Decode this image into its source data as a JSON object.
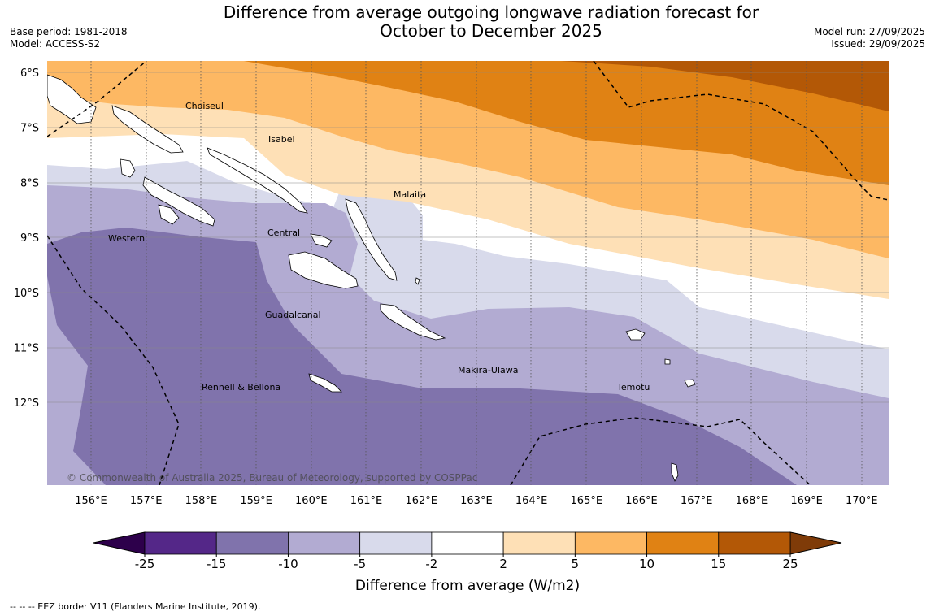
{
  "title_line1": "Difference from average outgoing longwave radiation forecast for",
  "title_line2": "October to December 2025",
  "meta": {
    "base_period": "Base period: 1981-2018",
    "model": "Model: ACCESS-S2",
    "model_run": "Model run: 27/09/2025",
    "issued": "Issued: 29/09/2025"
  },
  "map": {
    "lat_labels": [
      "6°S",
      "7°S",
      "8°S",
      "9°S",
      "10°S",
      "11°S",
      "12°S"
    ],
    "lon_labels": [
      "156°E",
      "157°E",
      "158°E",
      "159°E",
      "160°E",
      "161°E",
      "162°E",
      "163°E",
      "164°E",
      "165°E",
      "166°E",
      "167°E",
      "168°E",
      "169°E",
      "170°E"
    ],
    "provinces": {
      "choiseul": "Choiseul",
      "isabel": "Isabel",
      "malaita": "Malaita",
      "western": "Western",
      "central": "Central",
      "guadalcanal": "Guadalcanal",
      "makira": "Makira-Ulawa",
      "temotu": "Temotu",
      "rennell": "Rennell & Bellona"
    },
    "copyright": "© Commonwealth of Australia 2025, Bureau of Meteorology, supported by COSPPac"
  },
  "colorbar": {
    "ticks": [
      "-25",
      "-15",
      "-10",
      "-5",
      "-2",
      "2",
      "5",
      "10",
      "15",
      "25"
    ],
    "colors": [
      "#542788",
      "#8073ac",
      "#b2abd2",
      "#d8daeb",
      "#ffffff",
      "#fee0b6",
      "#fdb863",
      "#e08214",
      "#b35806"
    ],
    "under_color": "#2d004b",
    "over_color": "#7f3b08",
    "title": "Difference from average (W/m2)"
  },
  "footer": "--  --  -- EEZ border V11 (Flanders Marine Institute, 2019)."
}
